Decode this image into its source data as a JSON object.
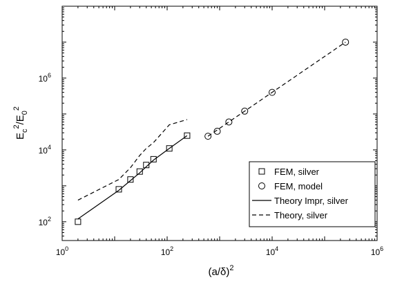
{
  "chart_data": {
    "type": "scatter",
    "xlabel": "(a/δ)²",
    "ylabel": "E_c²/E_0²",
    "xscale": "log",
    "yscale": "log",
    "xlim": [
      1,
      1000000
    ],
    "ylim": [
      30,
      100000000
    ],
    "x_ticks": [
      {
        "value": 1,
        "base": "10",
        "exp": "0"
      },
      {
        "value": 100,
        "base": "10",
        "exp": "2"
      },
      {
        "value": 10000,
        "base": "10",
        "exp": "4"
      },
      {
        "value": 1000000,
        "base": "10",
        "exp": "6"
      }
    ],
    "y_ticks": [
      {
        "value": 100,
        "base": "10",
        "exp": "2"
      },
      {
        "value": 10000,
        "base": "10",
        "exp": "4"
      },
      {
        "value": 1000000,
        "base": "10",
        "exp": "6"
      }
    ],
    "grid": false,
    "legend_position": "bottom-right",
    "series": [
      {
        "name": "FEM, silver",
        "style": "marker-square",
        "x": [
          2,
          12,
          20,
          30,
          40,
          55,
          110,
          240
        ],
        "y": [
          100,
          800,
          1500,
          2500,
          3800,
          5500,
          11000,
          25000
        ]
      },
      {
        "name": "FEM, model",
        "style": "marker-circle",
        "x": [
          600,
          900,
          1500,
          3000,
          10000,
          250000
        ],
        "y": [
          24000,
          33000,
          60000,
          120000,
          400000,
          10000000
        ]
      },
      {
        "name": "Theory Impr, silver",
        "style": "solid",
        "x": [
          2,
          12,
          20,
          30,
          40,
          55,
          110,
          240
        ],
        "y": [
          120,
          750,
          1400,
          2300,
          3400,
          5200,
          11000,
          25000
        ]
      },
      {
        "name": "Theory, silver",
        "style": "dashed",
        "x": [
          2,
          12,
          20,
          30,
          40,
          55,
          110,
          240,
          600,
          1500,
          10000,
          250000
        ],
        "y": [
          400,
          1500,
          3200,
          7000,
          11000,
          16000,
          50000,
          70000,
          24000,
          60000,
          400000,
          10000000
        ]
      }
    ]
  }
}
